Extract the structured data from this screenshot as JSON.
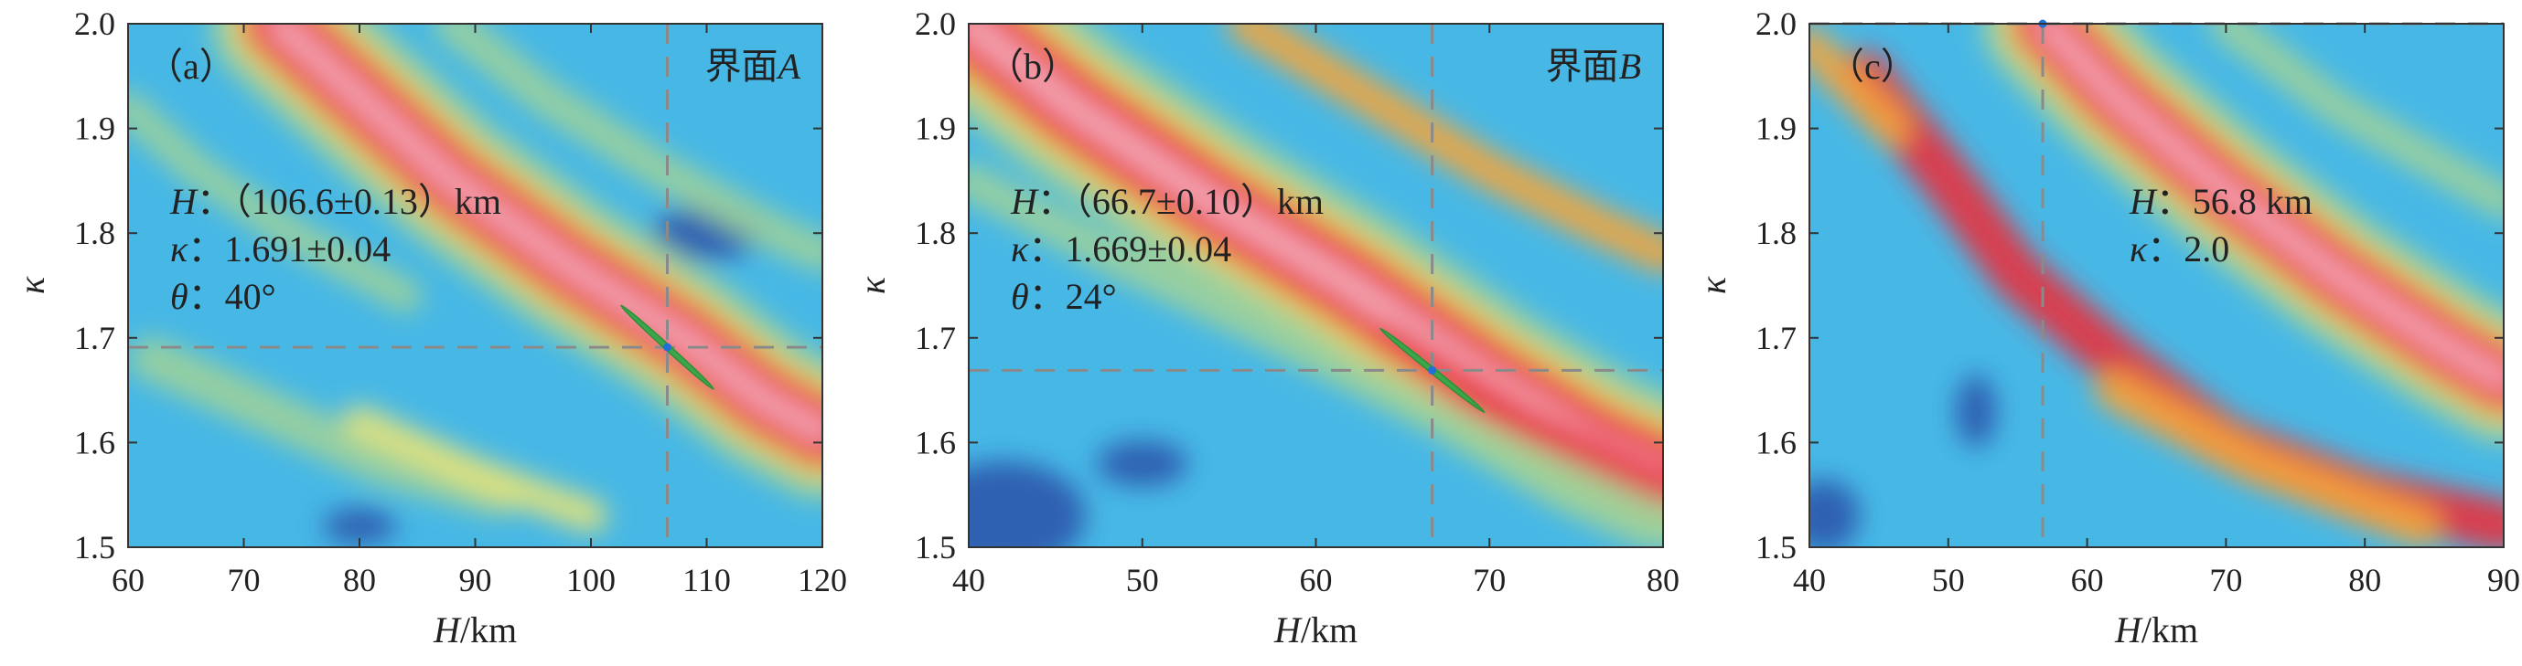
{
  "chart_data": [
    {
      "type": "heatmap",
      "panel_label": "（a）",
      "interface_label": {
        "prefix": "界面",
        "letter": "A"
      },
      "xlabel": {
        "var": "H",
        "unit": "/km"
      },
      "ylabel": "κ",
      "xlim": [
        60,
        120
      ],
      "ylim": [
        1.5,
        2.0
      ],
      "xticks": [
        60,
        70,
        80,
        90,
        100,
        110,
        120
      ],
      "yticks": [
        1.5,
        1.6,
        1.7,
        1.8,
        1.9,
        2.0
      ],
      "annotations": [
        {
          "var": "H",
          "text": "：（106.6±0.13）km"
        },
        {
          "var": "κ",
          "text": "：1.691±0.04"
        },
        {
          "var": "θ",
          "text": "：40°"
        }
      ],
      "best_fit": {
        "H": 106.6,
        "kappa": 1.691
      },
      "error_ellipse": {
        "dH": 4.0,
        "dk": 0.04
      },
      "colors": {
        "background": "#47b8e6",
        "ridge": "#e8303e",
        "ridge_core": "#f4a7b5",
        "low": "#2a52a8"
      }
    },
    {
      "type": "heatmap",
      "panel_label": "（b）",
      "interface_label": {
        "prefix": "界面",
        "letter": "B"
      },
      "xlabel": {
        "var": "H",
        "unit": "/km"
      },
      "ylabel": "κ",
      "xlim": [
        40,
        80
      ],
      "ylim": [
        1.5,
        2.0
      ],
      "xticks": [
        40,
        50,
        60,
        70,
        80
      ],
      "yticks": [
        1.5,
        1.6,
        1.7,
        1.8,
        1.9,
        2.0
      ],
      "annotations": [
        {
          "var": "H",
          "text": "：（66.7±0.10）km"
        },
        {
          "var": "κ",
          "text": "：1.669±0.04"
        },
        {
          "var": "θ",
          "text": "：24°"
        }
      ],
      "best_fit": {
        "H": 66.7,
        "kappa": 1.669
      },
      "error_ellipse": {
        "dH": 3.0,
        "dk": 0.04
      },
      "colors": {
        "background": "#47b8e6",
        "ridge": "#e8303e",
        "ridge_core": "#f4a7b5",
        "low": "#2a52a8"
      }
    },
    {
      "type": "heatmap",
      "panel_label": "（c）",
      "interface_label": null,
      "xlabel": {
        "var": "H",
        "unit": "/km"
      },
      "ylabel": "κ",
      "xlim": [
        40,
        90
      ],
      "ylim": [
        1.5,
        2.0
      ],
      "xticks": [
        40,
        50,
        60,
        70,
        80,
        90
      ],
      "yticks": [
        1.5,
        1.6,
        1.7,
        1.8,
        1.9,
        2.0
      ],
      "annotations": [
        {
          "var": "H",
          "text": "：56.8 km"
        },
        {
          "var": "κ",
          "text": "：2.0"
        }
      ],
      "best_fit": {
        "H": 56.8,
        "kappa": 2.0
      },
      "error_ellipse": null,
      "colors": {
        "background": "#47b8e6",
        "ridge": "#e8303e",
        "ridge_core": "#f4a7b5",
        "low": "#2a52a8"
      }
    }
  ]
}
